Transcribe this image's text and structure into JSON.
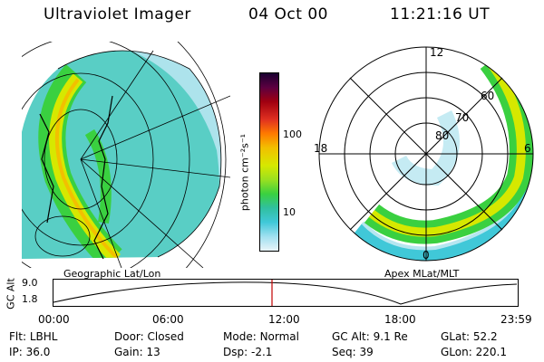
{
  "header": {
    "title": "Ultraviolet Imager",
    "date": "04 Oct 00",
    "time": "11:21:16 UT"
  },
  "left_panel": {
    "caption": "Geographic Lat/Lon"
  },
  "right_panel": {
    "caption": "Apex MLat/MLT",
    "mlt_labels": {
      "top": "12",
      "left": "18",
      "right": "6",
      "bottom": "0"
    },
    "lat_labels": [
      "80",
      "70",
      "60"
    ]
  },
  "colorbar": {
    "unit_label": "photon cm⁻²s⁻¹",
    "tick_labels": [
      "100",
      "10"
    ],
    "colors": [
      "#1a0030",
      "#5c0040",
      "#a00010",
      "#e03020",
      "#ff7a00",
      "#f2c000",
      "#d6e800",
      "#9ae020",
      "#3ad040",
      "#30c0a0",
      "#40c8d8",
      "#a0e0f0",
      "#e8f4f8"
    ]
  },
  "orbit": {
    "y_axis_label": "GC Alt",
    "y_ticks": [
      "9.0",
      "1.8"
    ],
    "time_ticks": [
      "00:00",
      "06:00",
      "12:00",
      "18:00",
      "23:59"
    ]
  },
  "metadata": {
    "row1": [
      {
        "label": "Flt:",
        "value": "LBHL"
      },
      {
        "label": "Door:",
        "value": "Closed"
      },
      {
        "label": "Mode:",
        "value": "Normal"
      },
      {
        "label": "GC Alt:",
        "value": "9.1 Re"
      },
      {
        "label": "GLat:",
        "value": "52.2"
      }
    ],
    "row2": [
      {
        "label": "IP:",
        "value": "36.0"
      },
      {
        "label": "Gain:",
        "value": "13"
      },
      {
        "label": "Dsp:",
        "value": "-2.1"
      },
      {
        "label": "Seq:",
        "value": "39"
      },
      {
        "label": "GLon:",
        "value": "220.1"
      }
    ]
  }
}
